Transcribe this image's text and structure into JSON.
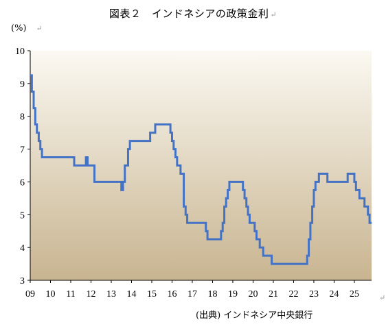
{
  "title": "図表２　インドネシアの政策金利",
  "unit_label": "(%)",
  "source": "(出典) インドネシア中央銀行",
  "return_mark": "↵",
  "colors": {
    "line": "#4472C4",
    "bg_top": "#FBF9F2",
    "bg_bottom": "#C8B490",
    "axis": "#000000"
  },
  "chart_data": {
    "type": "line",
    "step": true,
    "title": "図表２　インドネシアの政策金利",
    "ylabel": "(%)",
    "xlabel": "",
    "ylim": [
      3,
      10
    ],
    "xlim": [
      2009.0,
      2025.85
    ],
    "yticks": [
      3,
      4,
      5,
      6,
      7,
      8,
      9,
      10
    ],
    "xticks": [
      "09",
      "10",
      "11",
      "12",
      "13",
      "14",
      "15",
      "16",
      "17",
      "18",
      "19",
      "20",
      "21",
      "22",
      "23",
      "24",
      "25"
    ],
    "grid": false,
    "series": [
      {
        "x": [
          2009.0,
          2009.08,
          2009.17,
          2009.25,
          2009.33,
          2009.42,
          2009.5,
          2009.58,
          2011.17,
          2011.75,
          2011.83,
          2012.17,
          2013.5,
          2013.58,
          2013.67,
          2013.83,
          2013.92,
          2014.92,
          2015.17,
          2015.92,
          2016.0,
          2016.08,
          2016.17,
          2016.25,
          2016.42,
          2016.58,
          2016.67,
          2016.75,
          2016.83,
          2017.67,
          2017.75,
          2017.83,
          2018.42,
          2018.5,
          2018.58,
          2018.67,
          2018.75,
          2018.83,
          2018.92,
          2019.5,
          2019.58,
          2019.67,
          2019.75,
          2019.83,
          2020.08,
          2020.17,
          2020.33,
          2020.5,
          2020.92,
          2021.08,
          2022.67,
          2022.75,
          2022.83,
          2022.92,
          2023.0,
          2023.08,
          2023.25,
          2023.67,
          2024.33,
          2024.67,
          2025.0,
          2025.08,
          2025.25,
          2025.5,
          2025.67,
          2025.75
        ],
        "y": [
          9.25,
          8.75,
          8.25,
          7.75,
          7.5,
          7.25,
          7.0,
          6.75,
          6.5,
          6.75,
          6.5,
          6.0,
          5.75,
          6.0,
          6.5,
          7.0,
          7.25,
          7.5,
          7.75,
          7.5,
          7.25,
          7.0,
          6.75,
          6.5,
          6.25,
          5.25,
          5.0,
          4.75,
          4.75,
          4.5,
          4.25,
          4.25,
          4.5,
          4.75,
          5.25,
          5.5,
          5.75,
          6.0,
          6.0,
          5.75,
          5.5,
          5.25,
          5.0,
          4.75,
          4.5,
          4.25,
          4.0,
          3.75,
          3.5,
          3.5,
          3.75,
          4.25,
          4.75,
          5.25,
          5.75,
          6.0,
          6.25,
          6.0,
          6.0,
          6.25,
          6.0,
          5.75,
          5.5,
          5.25,
          5.0,
          4.75
        ]
      }
    ]
  }
}
